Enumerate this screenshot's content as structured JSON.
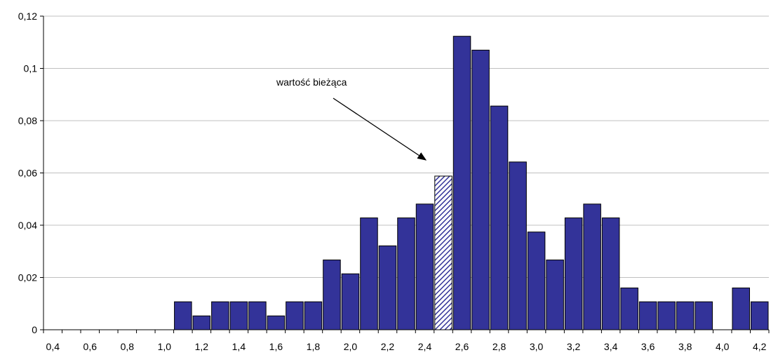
{
  "chart_data": {
    "type": "bar",
    "title": "",
    "xlabel": "",
    "ylabel": "",
    "ylim": [
      0,
      0.12
    ],
    "yticks": [
      "0",
      "0,02",
      "0,04",
      "0,06",
      "0,08",
      "0,1",
      "0,12"
    ],
    "xticks": [
      "0,4",
      "0,6",
      "0,8",
      "1,0",
      "1,2",
      "1,4",
      "1,6",
      "1,8",
      "2,0",
      "2,2",
      "2,4",
      "2,6",
      "2,8",
      "3,0",
      "3,2",
      "3,4",
      "3,6",
      "3,8",
      "4,0",
      "4,2"
    ],
    "grid": true,
    "bin_width": 0.1,
    "categories": [
      "0,4",
      "0,5",
      "0,6",
      "0,7",
      "0,8",
      "0,9",
      "1,0",
      "1,1",
      "1,2",
      "1,3",
      "1,4",
      "1,5",
      "1,6",
      "1,7",
      "1,8",
      "1,9",
      "2,0",
      "2,1",
      "2,2",
      "2,3",
      "2,4",
      "2,5",
      "2,6",
      "2,7",
      "2,8",
      "2,9",
      "3,0",
      "3,1",
      "3,2",
      "3,3",
      "3,4",
      "3,5",
      "3,6",
      "3,7",
      "3,8",
      "3,9",
      "4,0",
      "4,1",
      "4,2"
    ],
    "values": [
      0,
      0,
      0,
      0,
      0,
      0,
      0,
      0.0107,
      0.0053,
      0.0107,
      0.0107,
      0.0107,
      0.0053,
      0.0107,
      0.0107,
      0.0267,
      0.0214,
      0.0428,
      0.0321,
      0.0428,
      0.0481,
      0.0588,
      0.1123,
      0.107,
      0.0856,
      0.0642,
      0.0374,
      0.0267,
      0.0428,
      0.0481,
      0.0428,
      0.016,
      0.0107,
      0.0107,
      0.0107,
      0.0107,
      0,
      0.016,
      0.0107
    ],
    "highlight_category": "2,5",
    "colors": {
      "bar": "#333399",
      "outline": "#000000",
      "grid": "#c0c0c0",
      "highlight_hatch": "#333399"
    },
    "annotation": {
      "text": "wartość bieżąca"
    }
  }
}
